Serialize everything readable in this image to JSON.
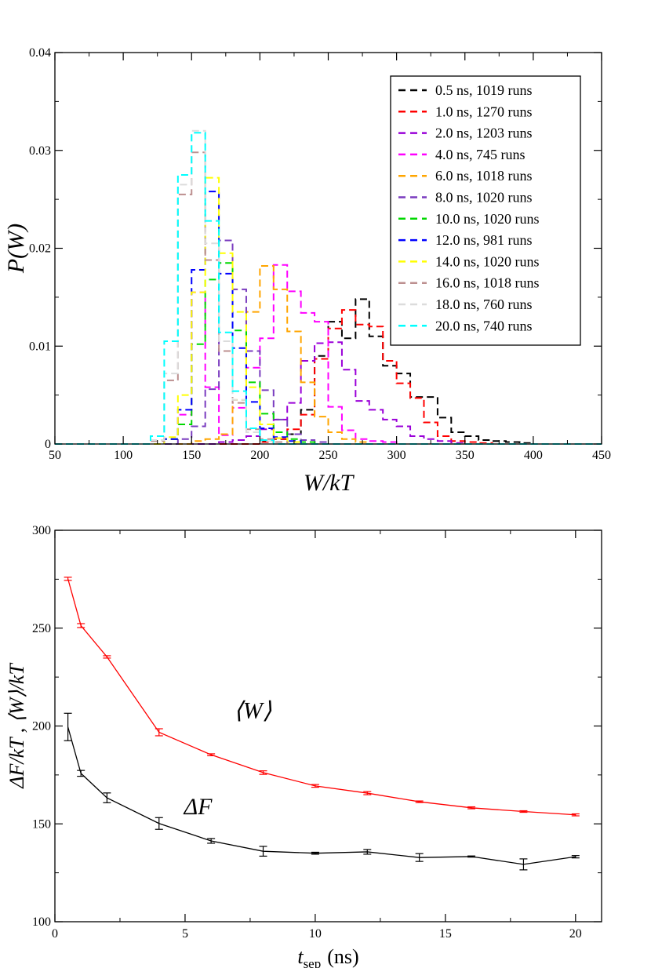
{
  "chart_data": [
    {
      "type": "histogram",
      "title": "",
      "xlabel": "W/kT",
      "ylabel": "P(W)",
      "xlim": [
        50,
        450
      ],
      "ylim": [
        0,
        0.04
      ],
      "xticks": [
        "50",
        "100",
        "150",
        "200",
        "250",
        "300",
        "350",
        "400",
        "450"
      ],
      "yticks": [
        "0",
        "0.01",
        "0.02",
        "0.03",
        "0.04"
      ],
      "bin_width": 10,
      "legend_position": "top-right",
      "series": [
        {
          "name": "0.5 ns, 1019 runs",
          "color": "#000000",
          "start": 200,
          "values": [
            0.0003,
            0.0005,
            0.001,
            0.0035,
            0.009,
            0.0125,
            0.0108,
            0.0148,
            0.011,
            0.008,
            0.0072,
            0.0048,
            0.0048,
            0.0027,
            0.0012,
            0.0008,
            0.0004,
            0.0003,
            0.0002,
            0.0001
          ]
        },
        {
          "name": "1.0 ns, 1270 runs",
          "color": "#ff0000",
          "start": 200,
          "values": [
            0.0002,
            0.0005,
            0.0015,
            0.003,
            0.0087,
            0.0118,
            0.0137,
            0.0122,
            0.012,
            0.0085,
            0.0062,
            0.0047,
            0.0022,
            0.0008,
            0.0003,
            0.0002,
            0.0001
          ]
        },
        {
          "name": "2.0 ns, 1203 runs",
          "color": "#9a00d8",
          "start": 170,
          "values": [
            0.0002,
            0.0004,
            0.0008,
            0.0015,
            0.0025,
            0.0042,
            0.0085,
            0.0103,
            0.0104,
            0.0076,
            0.0044,
            0.0035,
            0.0025,
            0.0018,
            0.0008,
            0.0005,
            0.0003,
            0.0001
          ]
        },
        {
          "name": "4.0 ns, 745 runs",
          "color": "#ff00ff",
          "start": 130,
          "values": [
            0.0005,
            0.003,
            0.0155,
            0.0058,
            0.0009,
            0.0037,
            0.0078,
            0.0108,
            0.0183,
            0.0156,
            0.0134,
            0.0125,
            0.0038,
            0.0014,
            0.0005,
            0.0003,
            0.0002
          ]
        },
        {
          "name": "6.0 ns, 1018 runs",
          "color": "#ffa500",
          "start": 150,
          "values": [
            0.0003,
            0.0005,
            0.001,
            0.0045,
            0.0135,
            0.0182,
            0.0158,
            0.0115,
            0.0063,
            0.0028,
            0.0012,
            0.0005,
            0.0002
          ]
        },
        {
          "name": "8.0 ns, 1020 runs",
          "color": "#7a3cbf",
          "start": 140,
          "values": [
            0.0005,
            0.0018,
            0.0056,
            0.0208,
            0.0158,
            0.0095,
            0.0055,
            0.0025,
            0.001,
            0.0004,
            0.0002
          ]
        },
        {
          "name": "10.0 ns, 1020 runs",
          "color": "#00d800",
          "start": 130,
          "values": [
            0.0005,
            0.002,
            0.0102,
            0.0168,
            0.0185,
            0.0116,
            0.0063,
            0.0031,
            0.0012,
            0.0005,
            0.0002
          ]
        },
        {
          "name": "12.0 ns, 981 runs",
          "color": "#0000ff",
          "start": 130,
          "values": [
            0.0005,
            0.0035,
            0.0178,
            0.0258,
            0.0174,
            0.0098,
            0.0043,
            0.0016,
            0.0007,
            0.0003
          ]
        },
        {
          "name": "14.0 ns, 1020 runs",
          "color": "#ffff00",
          "start": 130,
          "values": [
            0.0007,
            0.005,
            0.0155,
            0.0272,
            0.0195,
            0.0135,
            0.0058,
            0.002,
            0.0006,
            0.0002
          ]
        },
        {
          "name": "16.0 ns, 1018 runs",
          "color": "#bc8f8f",
          "start": 120,
          "values": [
            0.0003,
            0.0065,
            0.0255,
            0.0298,
            0.0188,
            0.0095,
            0.0042,
            0.0015,
            0.0005,
            0.0002
          ]
        },
        {
          "name": "18.0 ns, 760 runs",
          "color": "#dcdcdc",
          "start": 120,
          "values": [
            0.0004,
            0.0072,
            0.0265,
            0.032,
            0.0205,
            0.0105,
            0.0045,
            0.0012,
            0.0003
          ]
        },
        {
          "name": "20.0 ns, 740 runs",
          "color": "#00ffff",
          "start": 120,
          "values": [
            0.0008,
            0.0105,
            0.0275,
            0.0318,
            0.0228,
            0.0114,
            0.0054,
            0.0016,
            0.0004
          ]
        }
      ]
    },
    {
      "type": "line",
      "title": "",
      "xlabel": "t_sep (ns)",
      "xlabel_main": "t",
      "xlabel_sub": "sep",
      "xlabel_unit": "(ns)",
      "ylabel": "ΔF/kT , ⟨W⟩/kT",
      "xlim": [
        0,
        21
      ],
      "ylim": [
        100,
        300
      ],
      "xticks": [
        "0",
        "5",
        "10",
        "15",
        "20"
      ],
      "yticks": [
        "100",
        "150",
        "200",
        "250",
        "300"
      ],
      "annotations": [
        {
          "text": "⟨W⟩",
          "x": 7.6,
          "y": 204
        },
        {
          "text": "ΔF",
          "x": 5.5,
          "y": 155
        }
      ],
      "series": [
        {
          "name": "⟨W⟩",
          "color": "#ff0000",
          "x": [
            0.5,
            1,
            2,
            4,
            6,
            8,
            10,
            12,
            14,
            16,
            18,
            20
          ],
          "y": [
            275.2,
            251.3,
            235.3,
            196.8,
            185.3,
            176.2,
            169.4,
            165.7,
            161.3,
            158.2,
            156.3,
            154.6
          ],
          "err": [
            0.8,
            1.0,
            0.6,
            1.8,
            0.5,
            0.9,
            0.7,
            0.8,
            0.4,
            0.5,
            0.4,
            0.5
          ]
        },
        {
          "name": "ΔF",
          "color": "#000000",
          "x": [
            0.5,
            1,
            2,
            4,
            6,
            8,
            10,
            12,
            14,
            16,
            18,
            20
          ],
          "y": [
            199.5,
            175.8,
            163.3,
            150.2,
            141.3,
            136.0,
            135.0,
            135.7,
            132.8,
            133.3,
            129.3,
            133.2
          ],
          "err": [
            7.0,
            1.5,
            2.5,
            3.0,
            1.2,
            2.5,
            0.5,
            1.2,
            2.0,
            0.3,
            2.8,
            0.6
          ]
        }
      ]
    }
  ]
}
